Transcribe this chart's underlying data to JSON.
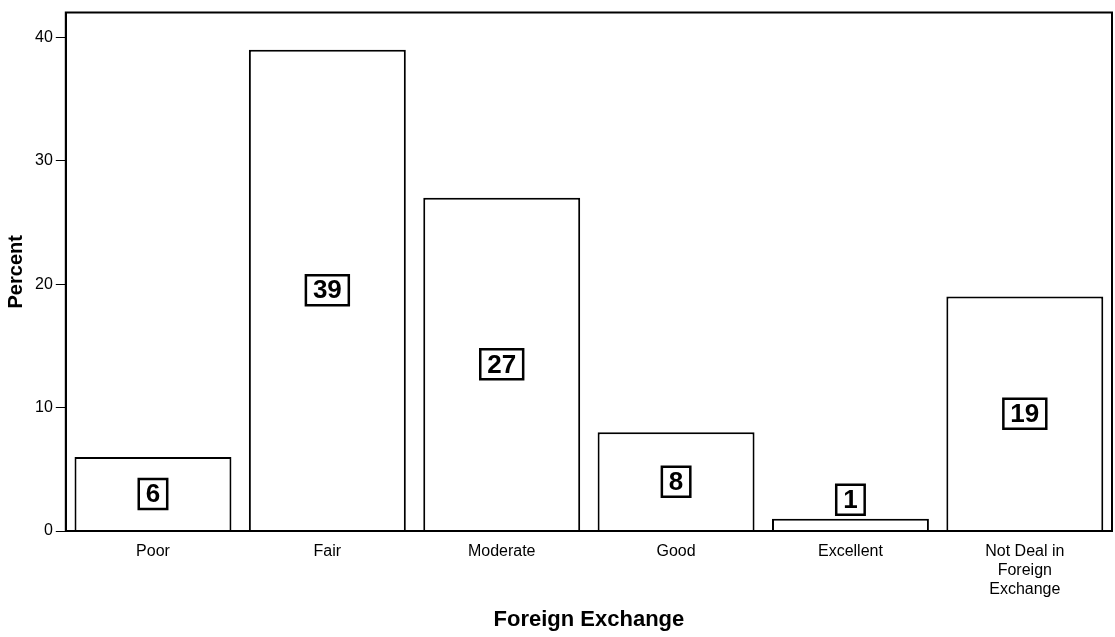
{
  "chart_data": {
    "type": "bar",
    "xlabel": "Foreign Exchange",
    "ylabel": "Percent",
    "categories": [
      "Poor",
      "Fair",
      "Moderate",
      "Good",
      "Excellent",
      "Not Deal in Foreign Exchange"
    ],
    "values": [
      6,
      39,
      27,
      8,
      1,
      19
    ],
    "color": "#ffffff",
    "ylim": [
      0,
      42
    ],
    "yticks": [
      0,
      10,
      20,
      30,
      40
    ],
    "grid": false,
    "legend": false,
    "data_labels": true
  }
}
